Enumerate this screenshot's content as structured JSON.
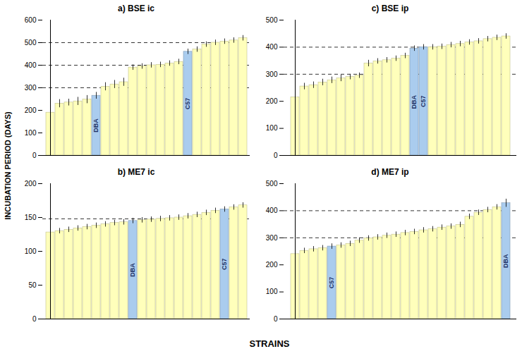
{
  "ylabel": "INCUBATION PERIOD (DAYS)",
  "xlabel": "STRAINS",
  "chart_data": [
    {
      "type": "bar",
      "title": "a) BSE ic",
      "categories": [
        null,
        null,
        null,
        null,
        null,
        null,
        null,
        null,
        null,
        null,
        null,
        null,
        null,
        null,
        null,
        null,
        null,
        null,
        null,
        null,
        null,
        null
      ],
      "values": [
        190,
        230,
        235,
        240,
        248,
        265,
        305,
        315,
        325,
        390,
        395,
        400,
        402,
        408,
        415,
        460,
        470,
        492,
        500,
        505,
        510,
        520
      ],
      "errors": [
        18,
        18,
        15,
        18,
        18,
        15,
        18,
        18,
        18,
        12,
        12,
        12,
        12,
        12,
        12,
        12,
        12,
        12,
        12,
        12,
        12,
        12
      ],
      "colors": [
        "#FFFFBB",
        "#FFFFBB",
        "#FFFFBB",
        "#FFFFBB",
        "#FFFFBB",
        "#AACCEE",
        "#FFFFBB",
        "#FFFFBB",
        "#FFFFBB",
        "#FFFFBB",
        "#FFFFBB",
        "#FFFFBB",
        "#FFFFBB",
        "#FFFFBB",
        "#FFFFBB",
        "#AACCEE",
        "#FFFFBB",
        "#FFFFBB",
        "#FFFFBB",
        "#FFFFBB",
        "#FFFFBB",
        "#FFFFBB"
      ],
      "annotations": [
        null,
        null,
        null,
        null,
        null,
        "DBA",
        null,
        null,
        null,
        null,
        null,
        null,
        null,
        null,
        null,
        "C57",
        null,
        null,
        null,
        null,
        null,
        null
      ],
      "reference_lines": [
        300,
        400,
        500
      ],
      "ylim": [
        0,
        600
      ],
      "yticks": [
        0,
        100,
        200,
        300,
        400,
        500,
        600
      ],
      "tick_labels": "y",
      "grid": false
    },
    {
      "type": "bar",
      "title": "c) BSE ip",
      "categories": [
        null,
        null,
        null,
        null,
        null,
        null,
        null,
        null,
        null,
        null,
        null,
        null,
        null,
        null,
        null,
        null,
        null,
        null,
        null,
        null,
        null,
        null,
        null,
        null
      ],
      "values": [
        215,
        255,
        260,
        270,
        278,
        285,
        290,
        295,
        340,
        348,
        352,
        358,
        368,
        395,
        400,
        400,
        402,
        408,
        412,
        418,
        422,
        430,
        435,
        440
      ],
      "errors": [
        15,
        12,
        12,
        12,
        12,
        12,
        10,
        10,
        12,
        10,
        10,
        10,
        10,
        10,
        10,
        10,
        10,
        10,
        10,
        10,
        10,
        10,
        10,
        10
      ],
      "colors": [
        "#FFFFBB",
        "#FFFFBB",
        "#FFFFBB",
        "#FFFFBB",
        "#FFFFBB",
        "#FFFFBB",
        "#FFFFBB",
        "#FFFFBB",
        "#FFFFBB",
        "#FFFFBB",
        "#FFFFBB",
        "#FFFFBB",
        "#FFFFBB",
        "#AACCEE",
        "#AACCEE",
        "#FFFFBB",
        "#FFFFBB",
        "#FFFFBB",
        "#FFFFBB",
        "#FFFFBB",
        "#FFFFBB",
        "#FFFFBB",
        "#FFFFBB",
        "#FFFFBB"
      ],
      "annotations": [
        null,
        null,
        null,
        null,
        null,
        null,
        null,
        null,
        null,
        null,
        null,
        null,
        null,
        "DBA",
        "C57",
        null,
        null,
        null,
        null,
        null,
        null,
        null,
        null,
        null
      ],
      "reference_lines": [
        300,
        400
      ],
      "ylim": [
        0,
        500
      ],
      "yticks": [
        0,
        100,
        200,
        300,
        400,
        500
      ],
      "tick_labels": "y",
      "grid": false
    },
    {
      "type": "bar",
      "title": "b) ME7 ic",
      "categories": [
        null,
        null,
        null,
        null,
        null,
        null,
        null,
        null,
        null,
        null,
        null,
        null,
        null,
        null,
        null,
        null,
        null,
        null,
        null,
        null,
        null,
        null
      ],
      "values": [
        128,
        130,
        132,
        134,
        136,
        138,
        140,
        142,
        143,
        145,
        146,
        147,
        148,
        149,
        150,
        152,
        154,
        157,
        160,
        162,
        165,
        168
      ],
      "errors": [
        4,
        4,
        4,
        4,
        4,
        4,
        4,
        4,
        4,
        4,
        4,
        4,
        4,
        4,
        4,
        4,
        4,
        4,
        4,
        4,
        4,
        4
      ],
      "colors": [
        "#FFFFBB",
        "#FFFFBB",
        "#FFFFBB",
        "#FFFFBB",
        "#FFFFBB",
        "#FFFFBB",
        "#FFFFBB",
        "#FFFFBB",
        "#FFFFBB",
        "#AACCEE",
        "#FFFFBB",
        "#FFFFBB",
        "#FFFFBB",
        "#FFFFBB",
        "#FFFFBB",
        "#FFFFBB",
        "#FFFFBB",
        "#FFFFBB",
        "#FFFFBB",
        "#AACCEE",
        "#FFFFBB",
        "#FFFFBB"
      ],
      "annotations": [
        null,
        null,
        null,
        null,
        null,
        null,
        null,
        null,
        null,
        "DBA",
        null,
        null,
        null,
        null,
        null,
        null,
        null,
        null,
        null,
        "C57",
        null,
        null
      ],
      "reference_lines": [
        148
      ],
      "ylim": [
        0,
        200
      ],
      "yticks": [
        0,
        50,
        100,
        150,
        200
      ],
      "tick_labels": "y",
      "grid": false
    },
    {
      "type": "bar",
      "title": "d) ME7 ip",
      "categories": [
        null,
        null,
        null,
        null,
        null,
        null,
        null,
        null,
        null,
        null,
        null,
        null,
        null,
        null,
        null,
        null,
        null,
        null,
        null,
        null,
        null,
        null,
        null,
        null
      ],
      "values": [
        240,
        252,
        258,
        262,
        268,
        272,
        278,
        290,
        298,
        302,
        308,
        312,
        318,
        322,
        328,
        332,
        338,
        342,
        348,
        378,
        393,
        403,
        413,
        428
      ],
      "errors": [
        15,
        10,
        10,
        10,
        10,
        10,
        10,
        10,
        10,
        10,
        10,
        10,
        10,
        10,
        10,
        10,
        10,
        10,
        10,
        10,
        10,
        10,
        10,
        15
      ],
      "colors": [
        "#FFFFBB",
        "#FFFFBB",
        "#FFFFBB",
        "#FFFFBB",
        "#AACCEE",
        "#FFFFBB",
        "#FFFFBB",
        "#FFFFBB",
        "#FFFFBB",
        "#FFFFBB",
        "#FFFFBB",
        "#FFFFBB",
        "#FFFFBB",
        "#FFFFBB",
        "#FFFFBB",
        "#FFFFBB",
        "#FFFFBB",
        "#FFFFBB",
        "#FFFFBB",
        "#FFFFBB",
        "#FFFFBB",
        "#FFFFBB",
        "#FFFFBB",
        "#AACCEE"
      ],
      "annotations": [
        null,
        null,
        null,
        null,
        "C57",
        null,
        null,
        null,
        null,
        null,
        null,
        null,
        null,
        null,
        null,
        null,
        null,
        null,
        null,
        null,
        null,
        null,
        null,
        "DBA"
      ],
      "reference_lines": [
        300,
        400
      ],
      "ylim": [
        0,
        500
      ],
      "yticks": [
        0,
        100,
        200,
        300,
        400,
        500
      ],
      "tick_labels": "y",
      "grid": false
    }
  ]
}
